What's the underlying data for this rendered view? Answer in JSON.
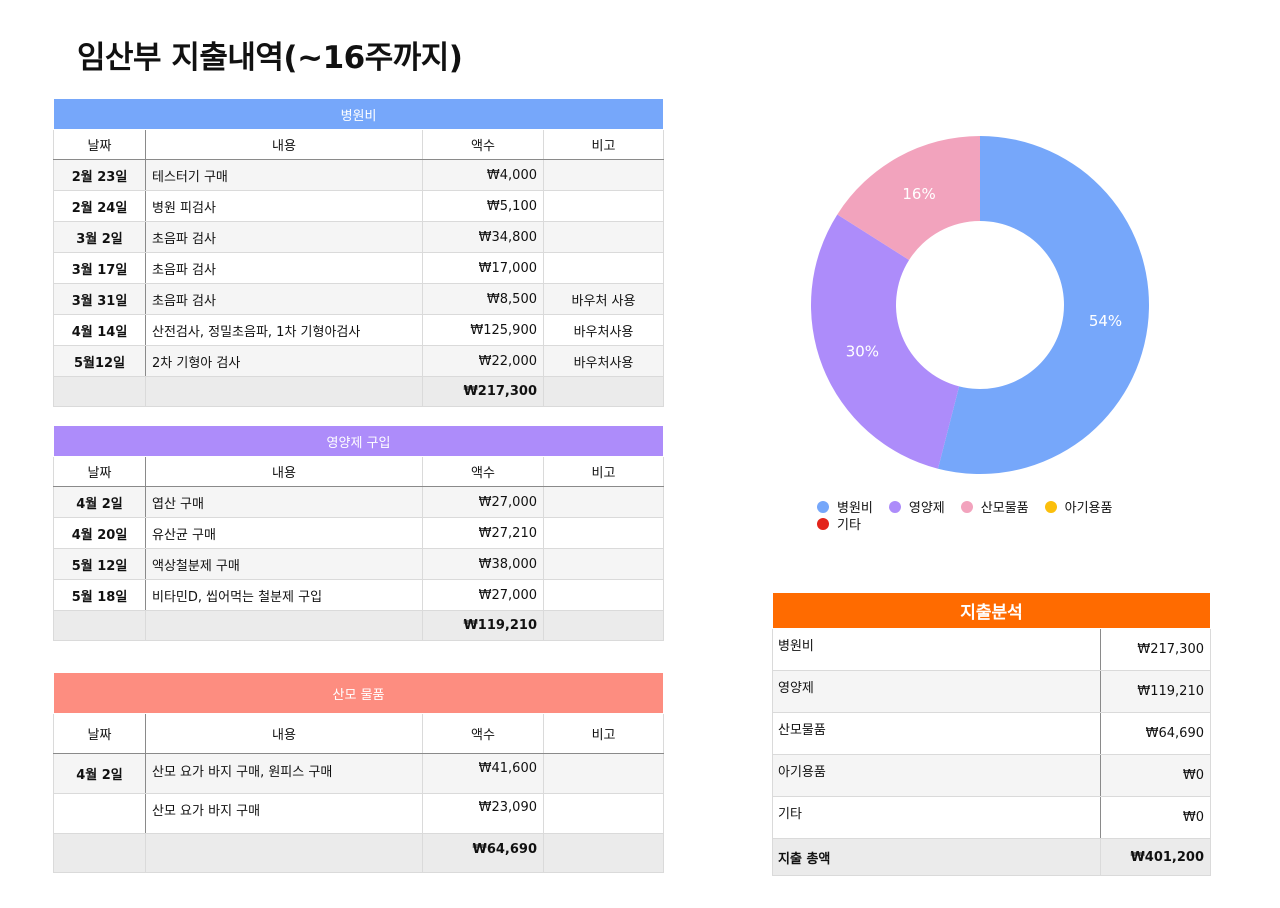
{
  "title": "임산부 지출내역(~16주까지)",
  "columns": {
    "date": "날짜",
    "desc": "내용",
    "amount": "액수",
    "note": "비고"
  },
  "hospital": {
    "header": "병원비",
    "color": "#76a7fa",
    "rows": [
      {
        "date": "2월 23일",
        "desc": "테스터기 구매",
        "amount": "₩4,000",
        "note": ""
      },
      {
        "date": "2월 24일",
        "desc": "병원 피검사",
        "amount": "₩5,100",
        "note": ""
      },
      {
        "date": "3월 2일",
        "desc": "초음파 검사",
        "amount": "₩34,800",
        "note": ""
      },
      {
        "date": "3월 17일",
        "desc": "초음파 검사",
        "amount": "₩17,000",
        "note": ""
      },
      {
        "date": "3월 31일",
        "desc": "초음파 검사",
        "amount": "₩8,500",
        "note": "바우처 사용"
      },
      {
        "date": "4월 14일",
        "desc": "산전검사, 정밀초음파, 1차 기형아검사",
        "amount": "₩125,900",
        "note": "바우처사용"
      },
      {
        "date": "5월12일",
        "desc": "2차 기형아 검사",
        "amount": "₩22,000",
        "note": "바우처사용"
      }
    ],
    "total": "₩217,300"
  },
  "supplements": {
    "header": "영양제 구입",
    "color": "#ad8cfa",
    "rows": [
      {
        "date": "4월 2일",
        "desc": "엽산 구매",
        "amount": "₩27,000",
        "note": ""
      },
      {
        "date": "4월 20일",
        "desc": "유산균 구매",
        "amount": "₩27,210",
        "note": ""
      },
      {
        "date": "5월 12일",
        "desc": "액상철분제 구매",
        "amount": "₩38,000",
        "note": ""
      },
      {
        "date": "5월 18일",
        "desc": "비타민D, 씹어먹는 철분제 구입",
        "amount": "₩27,000",
        "note": ""
      }
    ],
    "total": "₩119,210"
  },
  "maternity": {
    "header": "산모 물품",
    "color": "#fd8d80",
    "rows": [
      {
        "date": "4월 2일",
        "desc": "산모 요가 바지 구매, 원피스 구매",
        "amount": "₩41,600",
        "note": ""
      },
      {
        "date": "",
        "desc": "산모 요가 바지 구매",
        "amount": "₩23,090",
        "note": ""
      }
    ],
    "total": "₩64,690"
  },
  "chart_data": {
    "type": "pie",
    "donut": true,
    "categories": [
      "병원비",
      "영양제",
      "산모물품",
      "아기용품",
      "기타"
    ],
    "values": [
      54,
      30,
      16,
      0,
      0
    ],
    "labels": [
      "54%",
      "30%",
      "16%",
      "",
      ""
    ],
    "colors": [
      "#76a7fa",
      "#ad8cfa",
      "#f2a3bd",
      "#fbbf0c",
      "#e3241b"
    ],
    "legend_position": "bottom"
  },
  "legend": {
    "items": [
      {
        "label": "병원비",
        "color": "#76a7fa"
      },
      {
        "label": "영양제",
        "color": "#ad8cfa"
      },
      {
        "label": "산모물품",
        "color": "#f2a3bd"
      },
      {
        "label": "아기용품",
        "color": "#fbbf0c"
      },
      {
        "label": "기타",
        "color": "#e3241b"
      }
    ]
  },
  "summary": {
    "header": "지출분석",
    "color": "#ff6b00",
    "rows": [
      {
        "label": "병원비",
        "amount": "₩217,300"
      },
      {
        "label": "영양제",
        "amount": "₩119,210"
      },
      {
        "label": "산모물품",
        "amount": "₩64,690"
      },
      {
        "label": "아기용품",
        "amount": "₩0"
      },
      {
        "label": "기타",
        "amount": "₩0"
      }
    ],
    "total_label": "지출 총액",
    "total": "₩401,200"
  }
}
